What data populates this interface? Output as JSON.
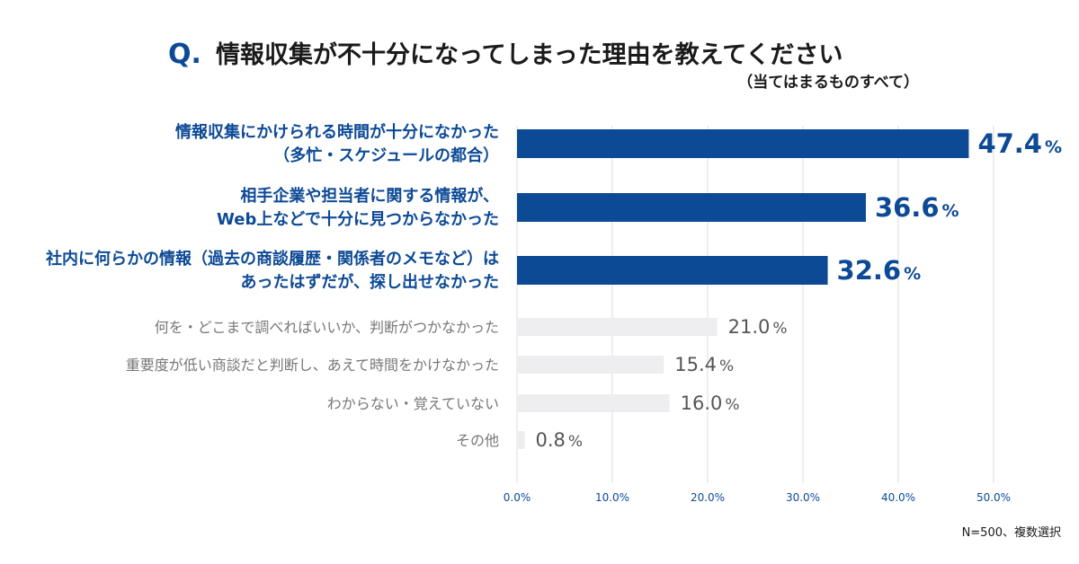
{
  "title": {
    "prefix": "Q.",
    "text": "情報収集が不十分になってしまった理由を教えてください",
    "subtitle": "（当てはまるものすべて）"
  },
  "footnote": "N=500、複数選択",
  "colors": {
    "highlight_bar": "#0d4a96",
    "normal_bar": "#eeeef1",
    "highlight_text": "#0d4a96",
    "normal_text": "#777777"
  },
  "chart_data": {
    "type": "bar",
    "orientation": "horizontal",
    "unit": "%",
    "xlim": [
      0,
      50
    ],
    "ticks": [
      0,
      10,
      20,
      30,
      40,
      50
    ],
    "tick_labels": [
      "0.0%",
      "10.0%",
      "20.0%",
      "30.0%",
      "40.0%",
      "50.0%"
    ],
    "grid": true,
    "categories": [
      {
        "label_lines": [
          "情報収集にかけられる時間が十分になかった",
          "（多忙・スケジュールの都合）"
        ],
        "value": 47.4,
        "value_label": "47.4",
        "highlight": true
      },
      {
        "label_lines": [
          "相手企業や担当者に関する情報が、",
          "Web上などで十分に見つからなかった"
        ],
        "value": 36.6,
        "value_label": "36.6",
        "highlight": true
      },
      {
        "label_lines": [
          "社内に何らかの情報（過去の商談履歴・関係者のメモなど）は",
          "あったはずだが、探し出せなかった"
        ],
        "value": 32.6,
        "value_label": "32.6",
        "highlight": true
      },
      {
        "label_lines": [
          "何を・どこまで調べればいいか、判断がつかなかった"
        ],
        "value": 21.0,
        "value_label": "21.0",
        "highlight": false
      },
      {
        "label_lines": [
          "重要度が低い商談だと判断し、あえて時間をかけなかった"
        ],
        "value": 15.4,
        "value_label": "15.4",
        "highlight": false
      },
      {
        "label_lines": [
          "わからない・覚えていない"
        ],
        "value": 16.0,
        "value_label": "16.0",
        "highlight": false
      },
      {
        "label_lines": [
          "その他"
        ],
        "value": 0.8,
        "value_label": "0.8",
        "highlight": false
      }
    ]
  }
}
